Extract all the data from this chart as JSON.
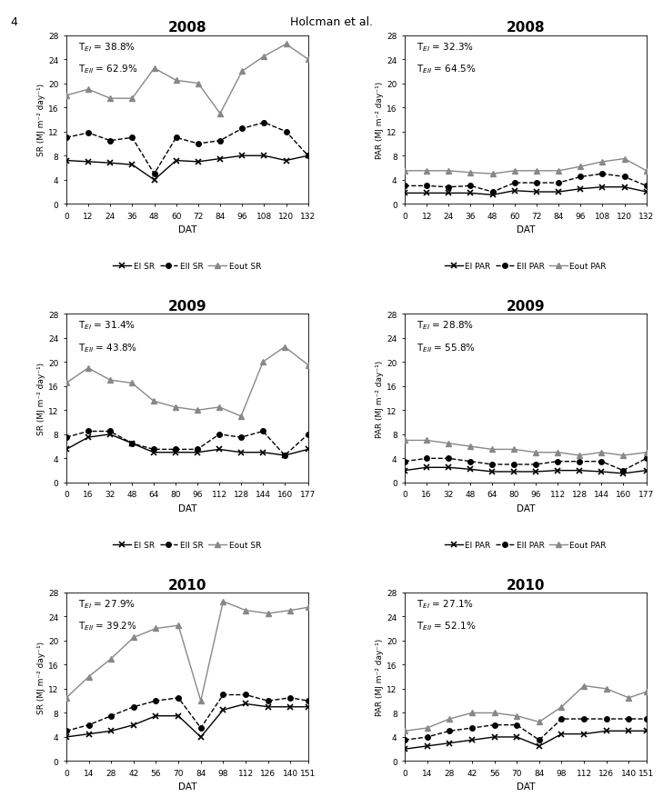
{
  "header_text": "Holcman et al.",
  "page_num": "4",
  "ylim": [
    0,
    28
  ],
  "yticks": [
    0,
    4,
    8,
    12,
    16,
    20,
    24,
    28
  ],
  "plots": [
    {
      "year": "2008",
      "type": "SR",
      "ylabel": "SR (MJ m⁻² day⁻¹)",
      "T_EI": "38.8%",
      "T_EII": "62.9%",
      "xticks": [
        0,
        12,
        24,
        36,
        48,
        60,
        72,
        84,
        96,
        108,
        120,
        132
      ],
      "EI_y": [
        7.2,
        7.0,
        6.8,
        6.5,
        4.0,
        7.2,
        7.0,
        7.5,
        8.0,
        8.0,
        7.2,
        8.0
      ],
      "EII_y": [
        11.0,
        11.8,
        10.5,
        11.0,
        5.0,
        11.0,
        10.0,
        10.5,
        12.5,
        13.5,
        12.0,
        8.0
      ],
      "Eout_y": [
        18.0,
        19.0,
        17.5,
        17.5,
        22.5,
        20.5,
        20.0,
        15.0,
        22.0,
        24.5,
        26.5,
        24.0
      ]
    },
    {
      "year": "2008",
      "type": "PAR",
      "ylabel": "PAR (MJ m⁻² day⁻¹)",
      "T_EI": "32.3%",
      "T_EII": "64.5%",
      "xticks": [
        0,
        12,
        24,
        36,
        48,
        60,
        72,
        84,
        96,
        108,
        120,
        132
      ],
      "EI_y": [
        1.8,
        1.8,
        1.8,
        1.8,
        1.5,
        2.2,
        2.0,
        2.0,
        2.5,
        2.8,
        2.8,
        2.0
      ],
      "EII_y": [
        3.0,
        3.0,
        2.8,
        3.0,
        2.0,
        3.5,
        3.5,
        3.5,
        4.5,
        5.0,
        4.5,
        3.0
      ],
      "Eout_y": [
        5.5,
        5.5,
        5.5,
        5.2,
        5.0,
        5.5,
        5.5,
        5.5,
        6.2,
        7.0,
        7.5,
        5.5
      ]
    },
    {
      "year": "2009",
      "type": "SR",
      "ylabel": "SR (MJ m⁻² day⁻¹)",
      "T_EI": "31.4%",
      "T_EII": "43.8%",
      "xticks": [
        0,
        16,
        32,
        48,
        64,
        80,
        96,
        112,
        128,
        144,
        160,
        177
      ],
      "EI_y": [
        5.5,
        7.5,
        8.0,
        6.5,
        5.0,
        5.0,
        5.0,
        5.5,
        5.0,
        5.0,
        4.5,
        5.5
      ],
      "EII_y": [
        7.5,
        8.5,
        8.5,
        6.5,
        5.5,
        5.5,
        5.5,
        8.0,
        7.5,
        8.5,
        4.5,
        8.0
      ],
      "Eout_y": [
        16.5,
        19.0,
        17.0,
        16.5,
        13.5,
        12.5,
        12.0,
        12.5,
        11.0,
        20.0,
        22.5,
        19.5
      ]
    },
    {
      "year": "2009",
      "type": "PAR",
      "ylabel": "PAR (MJ m⁻² day⁻¹)",
      "T_EI": "28.8%",
      "T_EII": "55.8%",
      "xticks": [
        0,
        16,
        32,
        48,
        64,
        80,
        96,
        112,
        128,
        144,
        160,
        177
      ],
      "EI_y": [
        2.0,
        2.5,
        2.5,
        2.2,
        1.8,
        1.8,
        1.8,
        2.0,
        2.0,
        1.8,
        1.5,
        2.0
      ],
      "EII_y": [
        3.5,
        4.0,
        4.0,
        3.5,
        3.0,
        3.0,
        3.0,
        3.5,
        3.5,
        3.5,
        2.0,
        4.0
      ],
      "Eout_y": [
        7.0,
        7.0,
        6.5,
        6.0,
        5.5,
        5.5,
        5.0,
        5.0,
        4.5,
        5.0,
        4.5,
        5.0
      ]
    },
    {
      "year": "2010",
      "type": "SR",
      "ylabel": "SR (MJ m⁻² day⁻¹)",
      "T_EI": "27.9%",
      "T_EII": "39.2%",
      "xticks": [
        0,
        14,
        28,
        42,
        56,
        70,
        84,
        98,
        112,
        126,
        140,
        151
      ],
      "EI_y": [
        4.0,
        4.5,
        5.0,
        6.0,
        7.5,
        7.5,
        4.0,
        8.5,
        9.5,
        9.0,
        9.0,
        9.0
      ],
      "EII_y": [
        5.0,
        6.0,
        7.5,
        9.0,
        10.0,
        10.5,
        5.5,
        11.0,
        11.0,
        10.0,
        10.5,
        10.0
      ],
      "Eout_y": [
        10.5,
        14.0,
        17.0,
        20.5,
        22.0,
        22.5,
        10.0,
        26.5,
        25.0,
        24.5,
        25.0,
        25.5
      ]
    },
    {
      "year": "2010",
      "type": "PAR",
      "ylabel": "PAR (MJ m⁻² day⁻¹)",
      "T_EI": "27.1%",
      "T_EII": "52.1%",
      "xticks": [
        0,
        14,
        28,
        42,
        56,
        70,
        84,
        98,
        112,
        126,
        140,
        151
      ],
      "EI_y": [
        2.0,
        2.5,
        3.0,
        3.5,
        4.0,
        4.0,
        2.5,
        4.5,
        4.5,
        5.0,
        5.0,
        5.0
      ],
      "EII_y": [
        3.5,
        4.0,
        5.0,
        5.5,
        6.0,
        6.0,
        3.5,
        7.0,
        7.0,
        7.0,
        7.0,
        7.0
      ],
      "Eout_y": [
        5.0,
        5.5,
        7.0,
        8.0,
        8.0,
        7.5,
        6.5,
        9.0,
        12.5,
        12.0,
        10.5,
        11.5
      ]
    }
  ]
}
